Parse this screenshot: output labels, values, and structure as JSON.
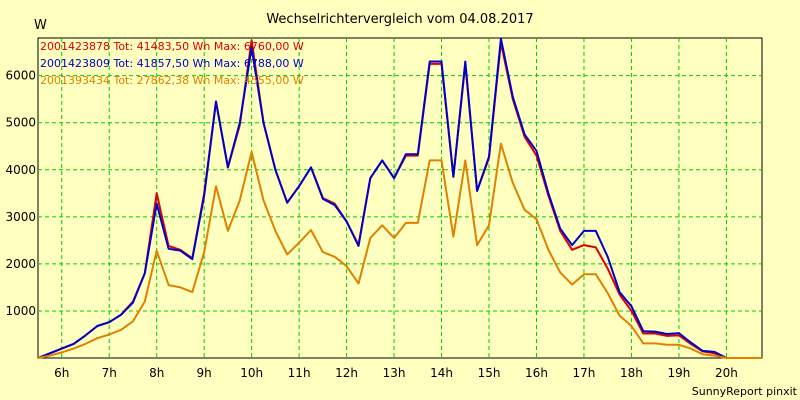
{
  "chart_data": {
    "type": "line",
    "title": "Wechselrichtervergleich vom 04.08.2017",
    "ylabel": "W",
    "xlabel": "",
    "xlim": [
      5.5,
      20.75
    ],
    "ylim": [
      0,
      6800
    ],
    "x_ticks": [
      {
        "value": 6,
        "label": "6h"
      },
      {
        "value": 7,
        "label": "7h"
      },
      {
        "value": 8,
        "label": "8h"
      },
      {
        "value": 9,
        "label": "9h"
      },
      {
        "value": 10,
        "label": "10h"
      },
      {
        "value": 11,
        "label": "11h"
      },
      {
        "value": 12,
        "label": "12h"
      },
      {
        "value": 13,
        "label": "13h"
      },
      {
        "value": 14,
        "label": "14h"
      },
      {
        "value": 15,
        "label": "15h"
      },
      {
        "value": 16,
        "label": "16h"
      },
      {
        "value": 17,
        "label": "17h"
      },
      {
        "value": 18,
        "label": "18h"
      },
      {
        "value": 19,
        "label": "19h"
      },
      {
        "value": 20,
        "label": "20h"
      }
    ],
    "y_ticks": [
      1000,
      2000,
      3000,
      4000,
      5000,
      6000
    ],
    "grid": true,
    "legend_position": "top-left",
    "x": [
      5.5,
      5.75,
      6,
      6.25,
      6.5,
      6.75,
      7,
      7.25,
      7.5,
      7.75,
      8,
      8.25,
      8.5,
      8.75,
      9,
      9.25,
      9.5,
      9.75,
      10,
      10.25,
      10.5,
      10.75,
      11,
      11.25,
      11.5,
      11.75,
      12,
      12.25,
      12.5,
      12.75,
      13,
      13.25,
      13.5,
      13.75,
      14,
      14.25,
      14.5,
      14.75,
      15,
      15.25,
      15.5,
      15.75,
      16,
      16.25,
      16.5,
      16.75,
      17,
      17.25,
      17.5,
      17.75,
      18,
      18.25,
      18.5,
      18.75,
      19,
      19.25,
      19.5,
      19.75,
      20,
      20.25,
      20.5,
      20.75
    ],
    "series": [
      {
        "name": "2001423878 Tot: 41483,50 Wh Max: 6760,00 W",
        "color": "#e00000",
        "values": [
          0,
          100,
          200,
          300,
          480,
          680,
          760,
          920,
          1200,
          1800,
          3500,
          2380,
          2300,
          2120,
          3500,
          5450,
          4050,
          4950,
          6750,
          5000,
          4000,
          3300,
          3650,
          4050,
          3400,
          3280,
          2900,
          2400,
          3820,
          4200,
          3820,
          4300,
          4300,
          6250,
          6250,
          3850,
          6250,
          3550,
          4250,
          6700,
          5500,
          4700,
          4300,
          3450,
          2700,
          2300,
          2400,
          2350,
          1900,
          1350,
          1000,
          520,
          520,
          470,
          480,
          300,
          140,
          100,
          0,
          0,
          0,
          0
        ]
      },
      {
        "name": "2001423809 Tot: 41857,50 Wh Max: 6788,00 W",
        "color": "#0000cc",
        "values": [
          0,
          100,
          200,
          300,
          480,
          680,
          760,
          920,
          1180,
          1800,
          3280,
          2320,
          2280,
          2100,
          3450,
          5450,
          4050,
          5000,
          6600,
          5000,
          4000,
          3300,
          3650,
          4050,
          3380,
          3250,
          2900,
          2380,
          3820,
          4200,
          3820,
          4330,
          4330,
          6300,
          6300,
          3850,
          6300,
          3550,
          4280,
          6788,
          5550,
          4750,
          4400,
          3500,
          2750,
          2400,
          2700,
          2700,
          2150,
          1400,
          1100,
          570,
          560,
          510,
          530,
          330,
          150,
          130,
          0,
          0,
          0,
          0
        ]
      },
      {
        "name": "2001393434 Tot: 27862,38 Wh Max: 4555,00 W",
        "color": "#e08000",
        "values": [
          0,
          50,
          120,
          200,
          300,
          420,
          500,
          600,
          780,
          1200,
          2280,
          1550,
          1500,
          1400,
          2250,
          3650,
          2700,
          3350,
          4380,
          3350,
          2700,
          2200,
          2450,
          2720,
          2250,
          2150,
          1950,
          1580,
          2550,
          2820,
          2550,
          2870,
          2870,
          4200,
          4200,
          2580,
          4200,
          2400,
          2820,
          4555,
          3720,
          3150,
          2950,
          2300,
          1820,
          1560,
          1780,
          1780,
          1380,
          900,
          680,
          310,
          310,
          280,
          280,
          200,
          80,
          50,
          0,
          0,
          0,
          0
        ]
      }
    ],
    "footer": "SunnyReport pinxit"
  }
}
